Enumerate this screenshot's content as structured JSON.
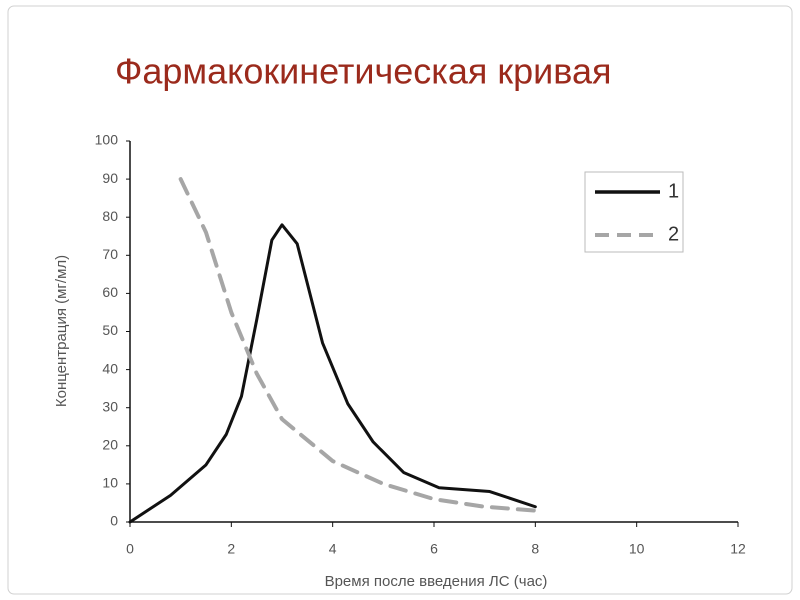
{
  "chart_data": {
    "type": "line",
    "title": "Фармакокинетическая кривая",
    "x_label": "Время после введения ЛС (час)",
    "y_label": "Концентрация (мг/мл)",
    "series": [
      {
        "name": "1",
        "color": "#111111",
        "dashed": false,
        "x": [
          0,
          0.8,
          1.5,
          1.9,
          2.2,
          2.5,
          2.8,
          3,
          3.3,
          3.8,
          4.3,
          4.8,
          5.4,
          6.1,
          7.1,
          8
        ],
        "values": [
          0,
          7,
          15,
          23,
          33,
          53,
          74,
          78,
          73,
          47,
          31,
          21,
          13,
          9,
          8,
          4
        ]
      },
      {
        "name": "2",
        "color": "#a6a6a6",
        "dashed": true,
        "x": [
          1,
          1.5,
          2,
          2.5,
          3,
          4,
          5,
          6,
          7,
          8
        ],
        "values": [
          90,
          76,
          55,
          39,
          27,
          16,
          10,
          6,
          4,
          3
        ]
      }
    ],
    "xlim": [
      0,
      12
    ],
    "xticks": [
      0,
      2,
      4,
      6,
      8,
      10,
      12
    ],
    "ylim": [
      0,
      100
    ],
    "yticks": [
      0,
      10,
      20,
      30,
      40,
      50,
      60,
      70,
      80,
      90,
      100
    ],
    "grid": false,
    "legend": "upper right"
  }
}
